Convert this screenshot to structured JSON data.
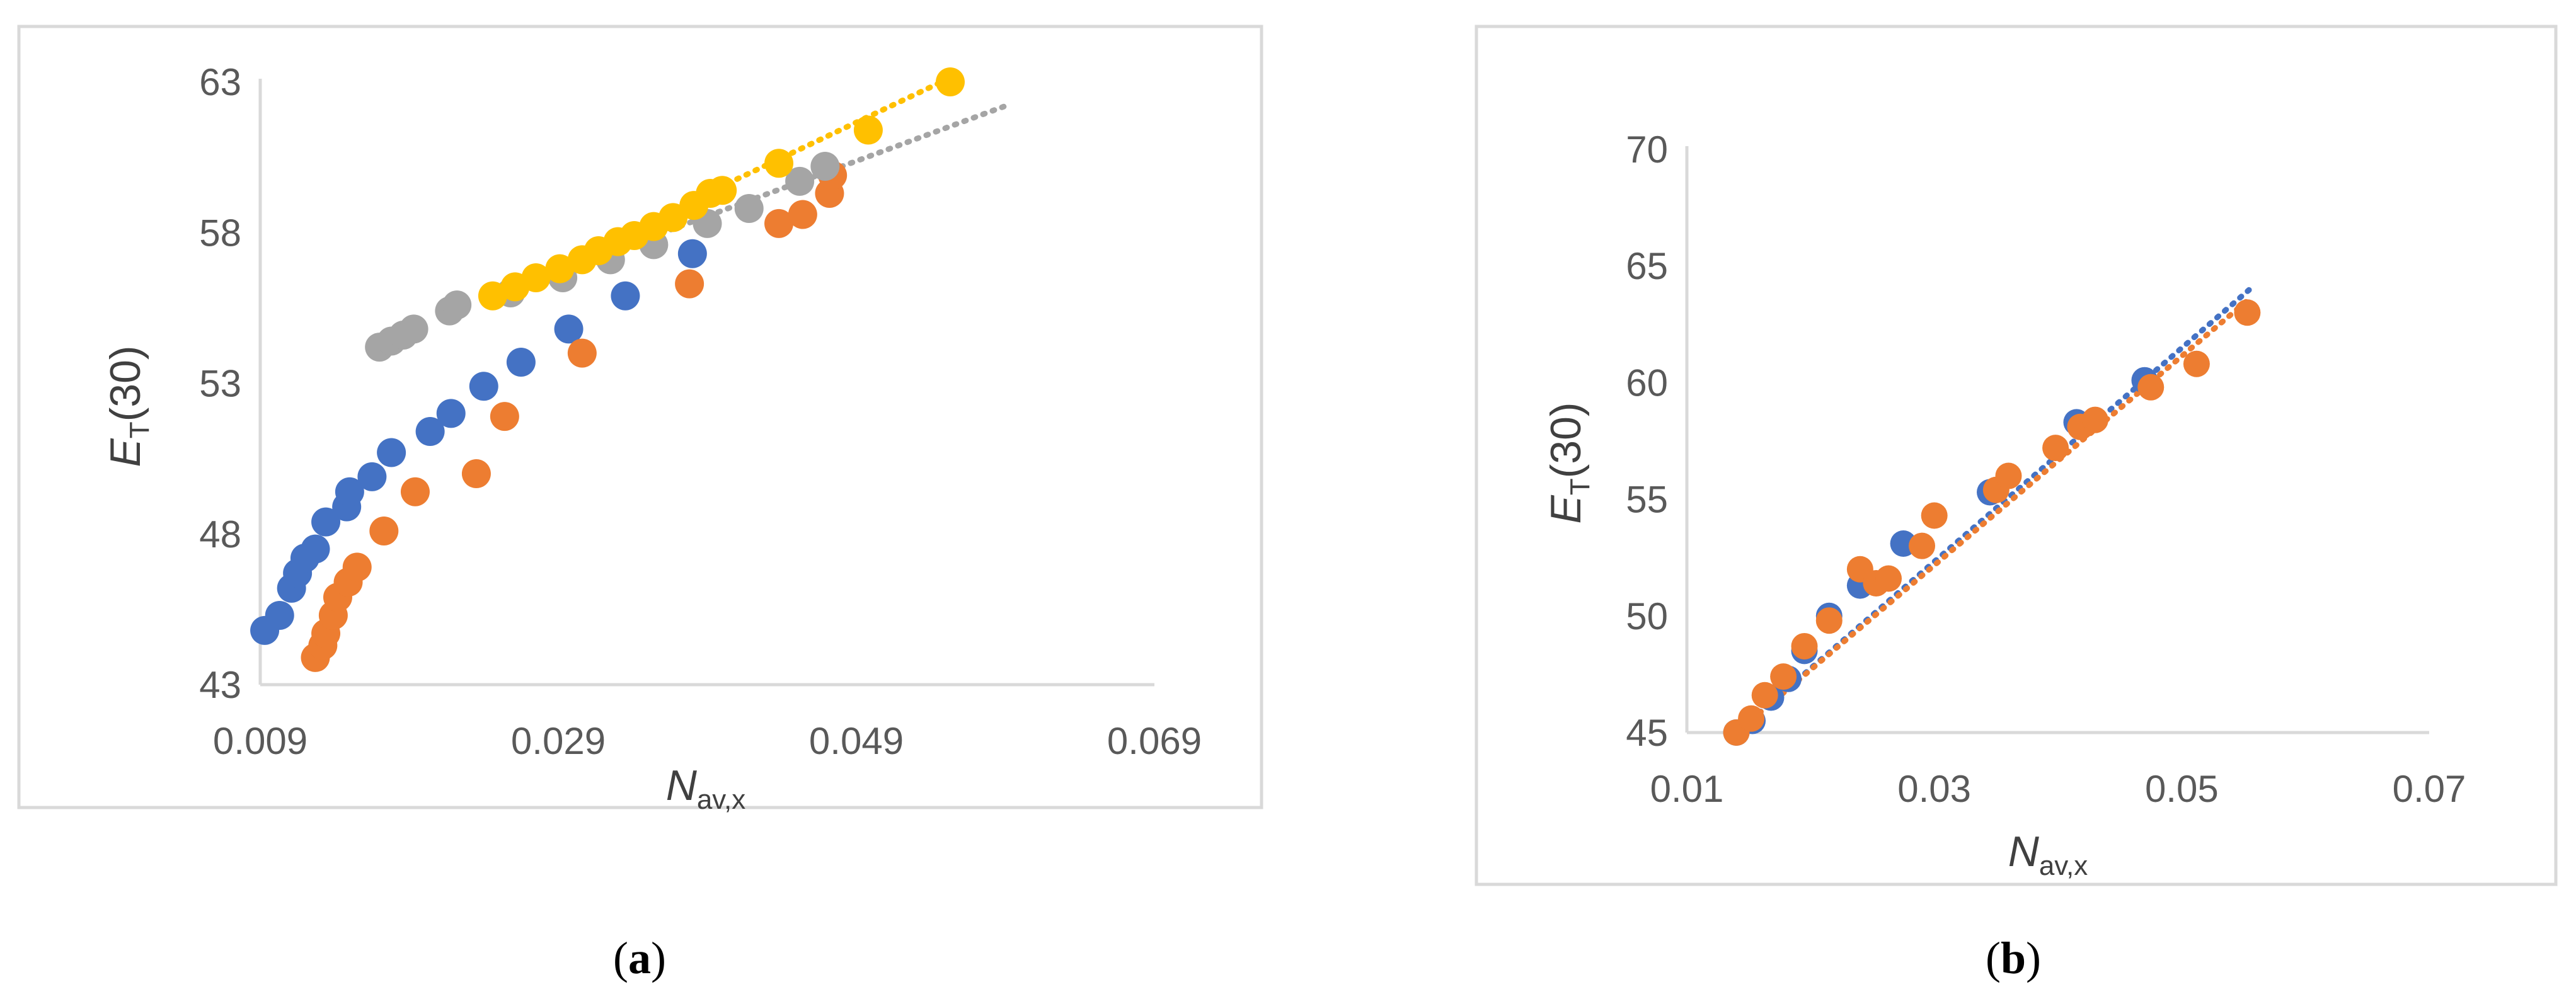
{
  "chart_data": [
    {
      "type": "scatter",
      "panel_label": {
        "open": "(",
        "letter": "a",
        "close": ")"
      },
      "xlabel": {
        "main": "N",
        "sub": "av,x"
      },
      "ylabel": {
        "main": "E",
        "sub": "T",
        "rest": "(30)"
      },
      "xlim": [
        0.009,
        0.069
      ],
      "ylim": [
        43,
        65
      ],
      "xticks": [
        "0.009",
        "0.029",
        "0.049",
        "0.069"
      ],
      "yticks": [
        "43",
        "48",
        "53",
        "58",
        "63"
      ],
      "grid": false,
      "legend": "none",
      "series": [
        {
          "color": "#4472C4",
          "points": [
            [
              0.0093,
              44.8
            ],
            [
              0.0103,
              45.3
            ],
            [
              0.0111,
              46.2
            ],
            [
              0.0115,
              46.7
            ],
            [
              0.012,
              47.2
            ],
            [
              0.0127,
              47.5
            ],
            [
              0.0134,
              48.4
            ],
            [
              0.0148,
              48.9
            ],
            [
              0.015,
              49.4
            ],
            [
              0.0165,
              49.9
            ],
            [
              0.0178,
              50.7
            ],
            [
              0.0204,
              51.4
            ],
            [
              0.0218,
              52.0
            ],
            [
              0.024,
              52.9
            ],
            [
              0.0265,
              53.7
            ],
            [
              0.0297,
              54.8
            ],
            [
              0.0335,
              55.9
            ],
            [
              0.038,
              57.3
            ]
          ],
          "trend": null
        },
        {
          "color": "#ED7D31",
          "points": [
            [
              0.0127,
              43.9
            ],
            [
              0.0132,
              44.3
            ],
            [
              0.0134,
              44.7
            ],
            [
              0.0139,
              45.3
            ],
            [
              0.0142,
              45.9
            ],
            [
              0.0149,
              46.4
            ],
            [
              0.0155,
              46.9
            ],
            [
              0.0173,
              48.1
            ],
            [
              0.0194,
              49.4
            ],
            [
              0.0235,
              50.0
            ],
            [
              0.0254,
              51.9
            ],
            [
              0.0306,
              54.0
            ],
            [
              0.0378,
              56.3
            ],
            [
              0.0438,
              58.3
            ],
            [
              0.0454,
              58.6
            ],
            [
              0.0472,
              59.3
            ],
            [
              0.0474,
              59.9
            ]
          ],
          "trend": null
        },
        {
          "color": "#A5A5A5",
          "points": [
            [
              0.017,
              54.2
            ],
            [
              0.0178,
              54.4
            ],
            [
              0.0186,
              54.6
            ],
            [
              0.0193,
              54.8
            ],
            [
              0.0217,
              55.4
            ],
            [
              0.0222,
              55.6
            ],
            [
              0.0258,
              56.0
            ],
            [
              0.0293,
              56.5
            ],
            [
              0.0325,
              57.1
            ],
            [
              0.0354,
              57.6
            ],
            [
              0.039,
              58.3
            ],
            [
              0.0418,
              58.8
            ],
            [
              0.0452,
              59.7
            ],
            [
              0.0469,
              60.2
            ]
          ],
          "trend": {
            "from": [
              0.0245,
              55.9
            ],
            "to": [
              0.059,
              62.2
            ]
          }
        },
        {
          "color": "#FFC000",
          "points": [
            [
              0.0246,
              55.9
            ],
            [
              0.0261,
              56.2
            ],
            [
              0.0275,
              56.5
            ],
            [
              0.0291,
              56.8
            ],
            [
              0.0306,
              57.1
            ],
            [
              0.0317,
              57.4
            ],
            [
              0.033,
              57.7
            ],
            [
              0.0341,
              57.9
            ],
            [
              0.0354,
              58.2
            ],
            [
              0.0367,
              58.5
            ],
            [
              0.0381,
              58.9
            ],
            [
              0.0392,
              59.3
            ],
            [
              0.04,
              59.4
            ],
            [
              0.0438,
              60.3
            ],
            [
              0.0498,
              61.4
            ],
            [
              0.0553,
              63.0
            ]
          ],
          "trend": {
            "from": [
              0.0245,
              55.9
            ],
            "to": [
              0.056,
              63.3
            ]
          }
        }
      ]
    },
    {
      "type": "scatter",
      "panel_label": {
        "open": "(",
        "letter": "b",
        "close": ")"
      },
      "xlabel": {
        "main": "N",
        "sub": "av,x"
      },
      "ylabel": {
        "main": "E",
        "sub": "T",
        "rest": "(30)"
      },
      "xlim": [
        0.01,
        0.07
      ],
      "ylim": [
        45,
        70
      ],
      "xticks": [
        "0.01",
        "0.03",
        "0.05",
        "0.07"
      ],
      "yticks": [
        "45",
        "50",
        "55",
        "60",
        "65",
        "70"
      ],
      "grid": false,
      "legend": "none",
      "series": [
        {
          "color": "#4472C4",
          "points": [
            [
              0.014,
              45.0
            ],
            [
              0.0153,
              45.5
            ],
            [
              0.0168,
              46.5
            ],
            [
              0.0182,
              47.3
            ],
            [
              0.0195,
              48.5
            ],
            [
              0.0215,
              50.0
            ],
            [
              0.024,
              51.3
            ],
            [
              0.0275,
              53.1
            ],
            [
              0.0345,
              55.3
            ],
            [
              0.0415,
              58.3
            ],
            [
              0.047,
              60.1
            ]
          ],
          "trend": {
            "from": [
              0.014,
              45.0
            ],
            "to": [
              0.0555,
              64.0
            ]
          }
        },
        {
          "color": "#ED7D31",
          "points": [
            [
              0.014,
              45.0
            ],
            [
              0.0152,
              45.6
            ],
            [
              0.0163,
              46.6
            ],
            [
              0.0178,
              47.4
            ],
            [
              0.0195,
              48.7
            ],
            [
              0.0215,
              49.8
            ],
            [
              0.024,
              52.0
            ],
            [
              0.0253,
              51.4
            ],
            [
              0.0263,
              51.6
            ],
            [
              0.029,
              53.0
            ],
            [
              0.03,
              54.3
            ],
            [
              0.035,
              55.4
            ],
            [
              0.036,
              56.0
            ],
            [
              0.0398,
              57.2
            ],
            [
              0.0418,
              58.1
            ],
            [
              0.043,
              58.4
            ],
            [
              0.0475,
              59.8
            ],
            [
              0.0512,
              60.8
            ],
            [
              0.0553,
              63.0
            ]
          ],
          "trend": {
            "from": [
              0.014,
              45.0
            ],
            "to": [
              0.0555,
              63.6
            ]
          }
        }
      ]
    }
  ]
}
